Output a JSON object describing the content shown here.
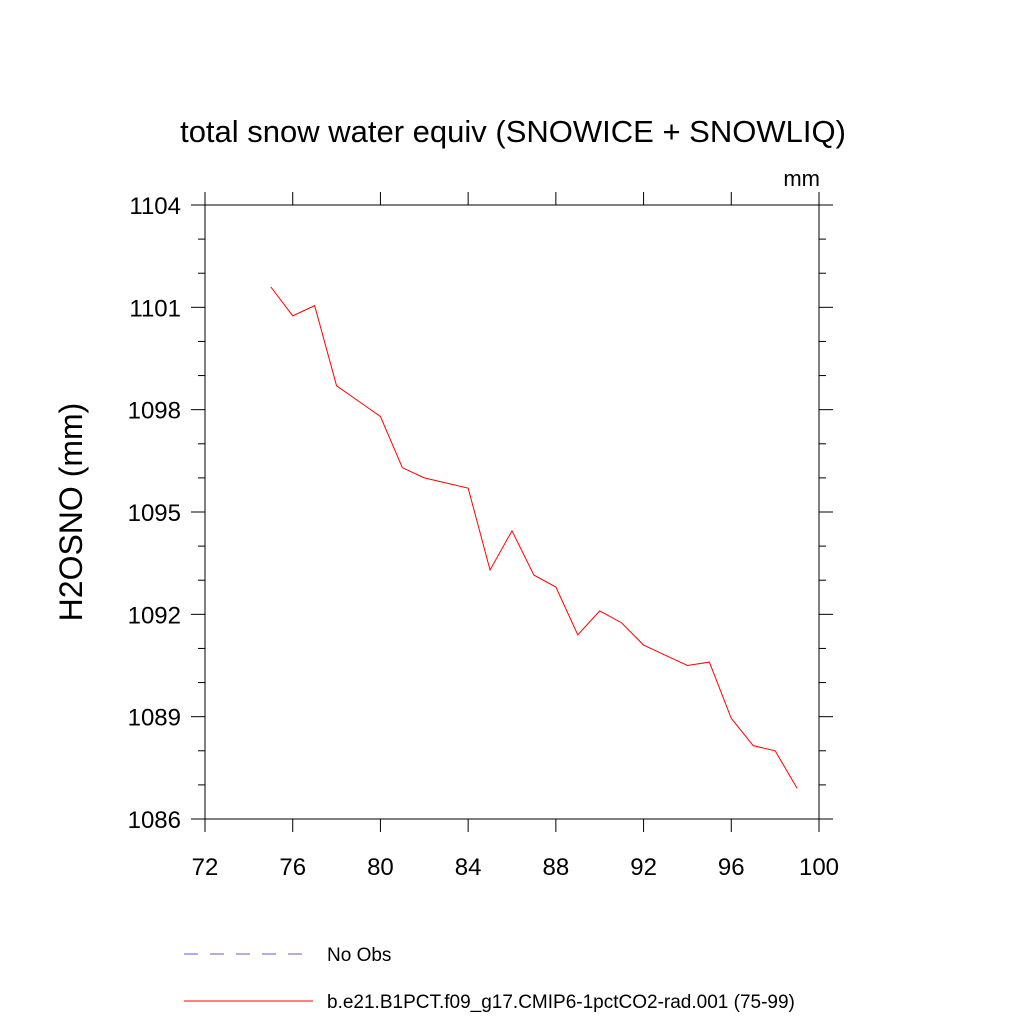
{
  "chart_data": {
    "type": "line",
    "title": "total snow water equiv (SNOWICE + SNOWLIQ)",
    "units": "mm",
    "ylabel": "H2OSNO  (mm)",
    "xlabel": "",
    "xlim": [
      72,
      100
    ],
    "ylim": [
      1086,
      1104
    ],
    "xticks": [
      72,
      76,
      80,
      84,
      88,
      92,
      96,
      100
    ],
    "yticks": [
      1086,
      1089,
      1092,
      1095,
      1098,
      1101,
      1104
    ],
    "grid": false,
    "legend_position": "bottom",
    "series": [
      {
        "name": "No Obs",
        "color": "#6a5acd",
        "dashed": true,
        "x": [],
        "y": []
      },
      {
        "name": "b.e21.B1PCT.f09_g17.CMIP6-1pctCO2-rad.001 (75-99)",
        "color": "#ff0000",
        "dashed": false,
        "x": [
          75,
          76,
          77,
          78,
          79,
          80,
          81,
          82,
          83,
          84,
          85,
          86,
          87,
          88,
          89,
          90,
          91,
          92,
          93,
          94,
          95,
          96,
          97,
          98,
          99
        ],
        "y": [
          1101.6,
          1100.75,
          1101.05,
          1098.7,
          1098.25,
          1097.8,
          1096.3,
          1096.0,
          1095.85,
          1095.7,
          1093.3,
          1094.45,
          1093.15,
          1092.8,
          1091.4,
          1092.1,
          1091.75,
          1091.1,
          1090.8,
          1090.5,
          1090.6,
          1088.95,
          1088.15,
          1088.0,
          1086.9
        ]
      }
    ]
  }
}
